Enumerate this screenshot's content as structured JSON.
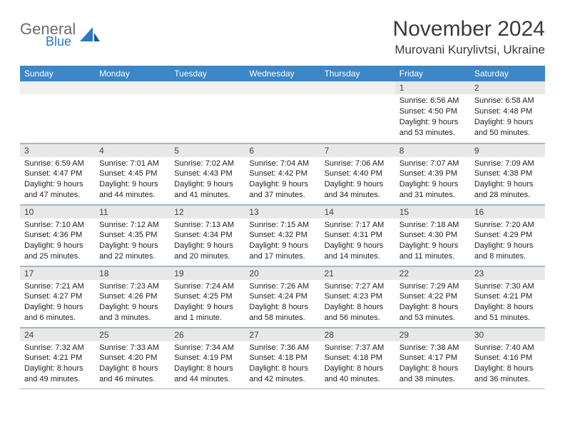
{
  "brand": {
    "name1": "General",
    "name2": "Blue"
  },
  "title": "November 2024",
  "location": "Murovani Kurylivtsi, Ukraine",
  "colors": {
    "header_bg": "#3b87c8",
    "header_text": "#ffffff",
    "daynum_bg": "#e8e8e8",
    "border": "#a8b6c4",
    "brand_gray": "#6a6a6a",
    "brand_blue": "#2a78c2"
  },
  "day_headers": [
    "Sunday",
    "Monday",
    "Tuesday",
    "Wednesday",
    "Thursday",
    "Friday",
    "Saturday"
  ],
  "weeks": [
    [
      {
        "n": "",
        "sr": "",
        "ss": "",
        "dl": "",
        "empty": true
      },
      {
        "n": "",
        "sr": "",
        "ss": "",
        "dl": "",
        "empty": true
      },
      {
        "n": "",
        "sr": "",
        "ss": "",
        "dl": "",
        "empty": true
      },
      {
        "n": "",
        "sr": "",
        "ss": "",
        "dl": "",
        "empty": true
      },
      {
        "n": "",
        "sr": "",
        "ss": "",
        "dl": "",
        "empty": true
      },
      {
        "n": "1",
        "sr": "Sunrise: 6:56 AM",
        "ss": "Sunset: 4:50 PM",
        "dl": "Daylight: 9 hours and 53 minutes."
      },
      {
        "n": "2",
        "sr": "Sunrise: 6:58 AM",
        "ss": "Sunset: 4:48 PM",
        "dl": "Daylight: 9 hours and 50 minutes."
      }
    ],
    [
      {
        "n": "3",
        "sr": "Sunrise: 6:59 AM",
        "ss": "Sunset: 4:47 PM",
        "dl": "Daylight: 9 hours and 47 minutes."
      },
      {
        "n": "4",
        "sr": "Sunrise: 7:01 AM",
        "ss": "Sunset: 4:45 PM",
        "dl": "Daylight: 9 hours and 44 minutes."
      },
      {
        "n": "5",
        "sr": "Sunrise: 7:02 AM",
        "ss": "Sunset: 4:43 PM",
        "dl": "Daylight: 9 hours and 41 minutes."
      },
      {
        "n": "6",
        "sr": "Sunrise: 7:04 AM",
        "ss": "Sunset: 4:42 PM",
        "dl": "Daylight: 9 hours and 37 minutes."
      },
      {
        "n": "7",
        "sr": "Sunrise: 7:06 AM",
        "ss": "Sunset: 4:40 PM",
        "dl": "Daylight: 9 hours and 34 minutes."
      },
      {
        "n": "8",
        "sr": "Sunrise: 7:07 AM",
        "ss": "Sunset: 4:39 PM",
        "dl": "Daylight: 9 hours and 31 minutes."
      },
      {
        "n": "9",
        "sr": "Sunrise: 7:09 AM",
        "ss": "Sunset: 4:38 PM",
        "dl": "Daylight: 9 hours and 28 minutes."
      }
    ],
    [
      {
        "n": "10",
        "sr": "Sunrise: 7:10 AM",
        "ss": "Sunset: 4:36 PM",
        "dl": "Daylight: 9 hours and 25 minutes."
      },
      {
        "n": "11",
        "sr": "Sunrise: 7:12 AM",
        "ss": "Sunset: 4:35 PM",
        "dl": "Daylight: 9 hours and 22 minutes."
      },
      {
        "n": "12",
        "sr": "Sunrise: 7:13 AM",
        "ss": "Sunset: 4:34 PM",
        "dl": "Daylight: 9 hours and 20 minutes."
      },
      {
        "n": "13",
        "sr": "Sunrise: 7:15 AM",
        "ss": "Sunset: 4:32 PM",
        "dl": "Daylight: 9 hours and 17 minutes."
      },
      {
        "n": "14",
        "sr": "Sunrise: 7:17 AM",
        "ss": "Sunset: 4:31 PM",
        "dl": "Daylight: 9 hours and 14 minutes."
      },
      {
        "n": "15",
        "sr": "Sunrise: 7:18 AM",
        "ss": "Sunset: 4:30 PM",
        "dl": "Daylight: 9 hours and 11 minutes."
      },
      {
        "n": "16",
        "sr": "Sunrise: 7:20 AM",
        "ss": "Sunset: 4:29 PM",
        "dl": "Daylight: 9 hours and 8 minutes."
      }
    ],
    [
      {
        "n": "17",
        "sr": "Sunrise: 7:21 AM",
        "ss": "Sunset: 4:27 PM",
        "dl": "Daylight: 9 hours and 6 minutes."
      },
      {
        "n": "18",
        "sr": "Sunrise: 7:23 AM",
        "ss": "Sunset: 4:26 PM",
        "dl": "Daylight: 9 hours and 3 minutes."
      },
      {
        "n": "19",
        "sr": "Sunrise: 7:24 AM",
        "ss": "Sunset: 4:25 PM",
        "dl": "Daylight: 9 hours and 1 minute."
      },
      {
        "n": "20",
        "sr": "Sunrise: 7:26 AM",
        "ss": "Sunset: 4:24 PM",
        "dl": "Daylight: 8 hours and 58 minutes."
      },
      {
        "n": "21",
        "sr": "Sunrise: 7:27 AM",
        "ss": "Sunset: 4:23 PM",
        "dl": "Daylight: 8 hours and 56 minutes."
      },
      {
        "n": "22",
        "sr": "Sunrise: 7:29 AM",
        "ss": "Sunset: 4:22 PM",
        "dl": "Daylight: 8 hours and 53 minutes."
      },
      {
        "n": "23",
        "sr": "Sunrise: 7:30 AM",
        "ss": "Sunset: 4:21 PM",
        "dl": "Daylight: 8 hours and 51 minutes."
      }
    ],
    [
      {
        "n": "24",
        "sr": "Sunrise: 7:32 AM",
        "ss": "Sunset: 4:21 PM",
        "dl": "Daylight: 8 hours and 49 minutes."
      },
      {
        "n": "25",
        "sr": "Sunrise: 7:33 AM",
        "ss": "Sunset: 4:20 PM",
        "dl": "Daylight: 8 hours and 46 minutes."
      },
      {
        "n": "26",
        "sr": "Sunrise: 7:34 AM",
        "ss": "Sunset: 4:19 PM",
        "dl": "Daylight: 8 hours and 44 minutes."
      },
      {
        "n": "27",
        "sr": "Sunrise: 7:36 AM",
        "ss": "Sunset: 4:18 PM",
        "dl": "Daylight: 8 hours and 42 minutes."
      },
      {
        "n": "28",
        "sr": "Sunrise: 7:37 AM",
        "ss": "Sunset: 4:18 PM",
        "dl": "Daylight: 8 hours and 40 minutes."
      },
      {
        "n": "29",
        "sr": "Sunrise: 7:38 AM",
        "ss": "Sunset: 4:17 PM",
        "dl": "Daylight: 8 hours and 38 minutes."
      },
      {
        "n": "30",
        "sr": "Sunrise: 7:40 AM",
        "ss": "Sunset: 4:16 PM",
        "dl": "Daylight: 8 hours and 36 minutes."
      }
    ]
  ]
}
